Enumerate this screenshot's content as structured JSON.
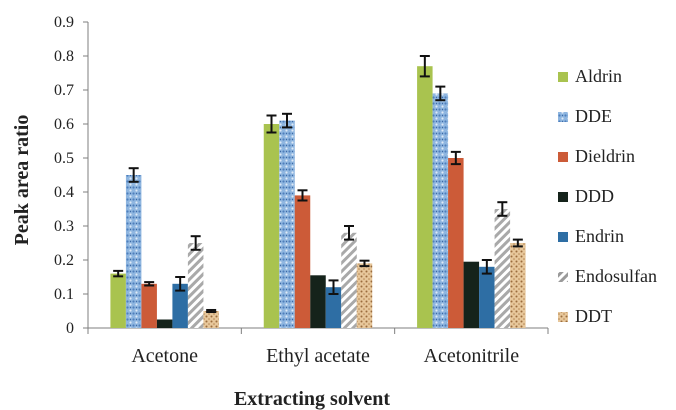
{
  "chart_data": {
    "type": "bar",
    "title": "",
    "xlabel": "Extracting solvent",
    "ylabel": "Peak area ratio",
    "ylim": [
      0,
      0.9
    ],
    "yticks": [
      0,
      0.1,
      0.2,
      0.3,
      0.4,
      0.5,
      0.6,
      0.7,
      0.8,
      0.9
    ],
    "ytick_labels": [
      "0",
      "0.1",
      "0.2",
      "0.3",
      "0.4",
      "0.5",
      "0.6",
      "0.7",
      "0.8",
      "0.9"
    ],
    "grid": false,
    "legend_position": "right",
    "categories": [
      "Acetone",
      "Ethyl acetate",
      "Acetonitrile"
    ],
    "series": [
      {
        "name": "Aldrin",
        "color": "#a9c34f",
        "pattern": "solid",
        "values": [
          0.16,
          0.6,
          0.77
        ],
        "errors": [
          0.008,
          0.025,
          0.03
        ]
      },
      {
        "name": "DDE",
        "color": "#6f9fd3",
        "pattern": "speckle",
        "values": [
          0.45,
          0.61,
          0.69
        ],
        "errors": [
          0.02,
          0.02,
          0.02
        ]
      },
      {
        "name": "Dieldrin",
        "color": "#cc5b38",
        "pattern": "solid",
        "values": [
          0.13,
          0.39,
          0.5
        ],
        "errors": [
          0.005,
          0.015,
          0.018
        ]
      },
      {
        "name": "DDD",
        "color": "#15231b",
        "pattern": "solid",
        "values": [
          0.025,
          0.155,
          0.195
        ],
        "errors": [
          0,
          0,
          0
        ]
      },
      {
        "name": "Endrin",
        "color": "#2e6ea4",
        "pattern": "solid",
        "values": [
          0.13,
          0.12,
          0.18
        ],
        "errors": [
          0.02,
          0.02,
          0.02
        ]
      },
      {
        "name": "Endosulfan",
        "color": "#b8b8b8",
        "pattern": "diagonal",
        "values": [
          0.25,
          0.28,
          0.35
        ],
        "errors": [
          0.02,
          0.02,
          0.02
        ]
      },
      {
        "name": "DDT",
        "color": "#d7ae78",
        "pattern": "dots",
        "values": [
          0.05,
          0.19,
          0.25
        ],
        "errors": [
          0.003,
          0.008,
          0.01
        ]
      }
    ]
  }
}
